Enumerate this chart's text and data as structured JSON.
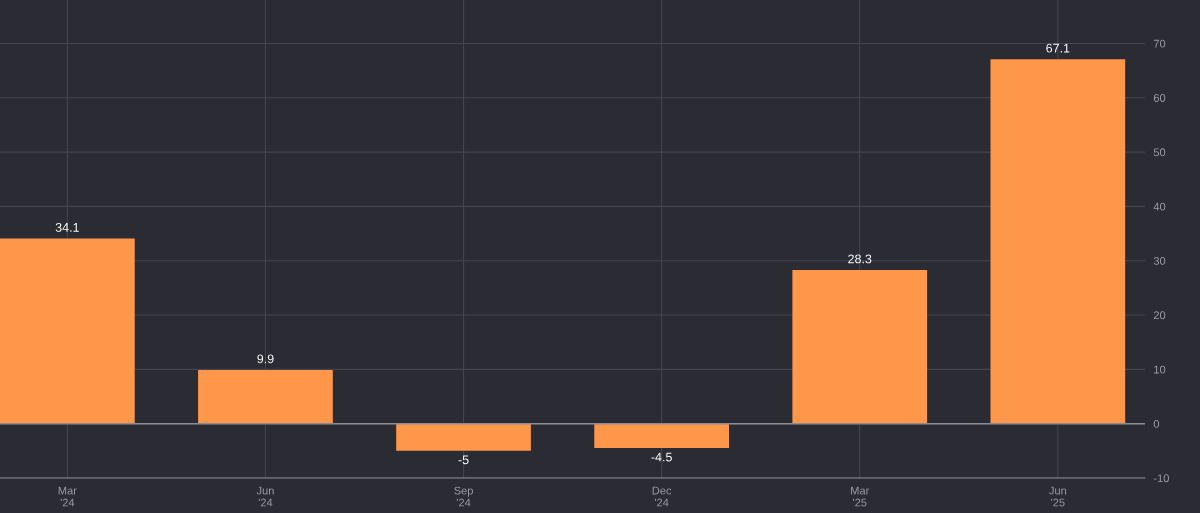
{
  "chart_data": {
    "type": "bar",
    "categories": [
      "Mar\n'24",
      "Jun\n'24",
      "Sep\n'24",
      "Dec\n'24",
      "Mar\n'25",
      "Jun\n'25"
    ],
    "values": [
      34.1,
      9.9,
      -5,
      -4.5,
      28.3,
      67.1
    ],
    "color": "#ff974b",
    "ylim": [
      -10,
      78
    ],
    "yticks": [
      -10,
      0,
      10,
      20,
      30,
      40,
      50,
      60,
      70
    ],
    "grid": true,
    "data_labels": true,
    "ref_lines": [
      {
        "axis": "y",
        "value": 0,
        "color": "#8a8c94"
      }
    ]
  }
}
